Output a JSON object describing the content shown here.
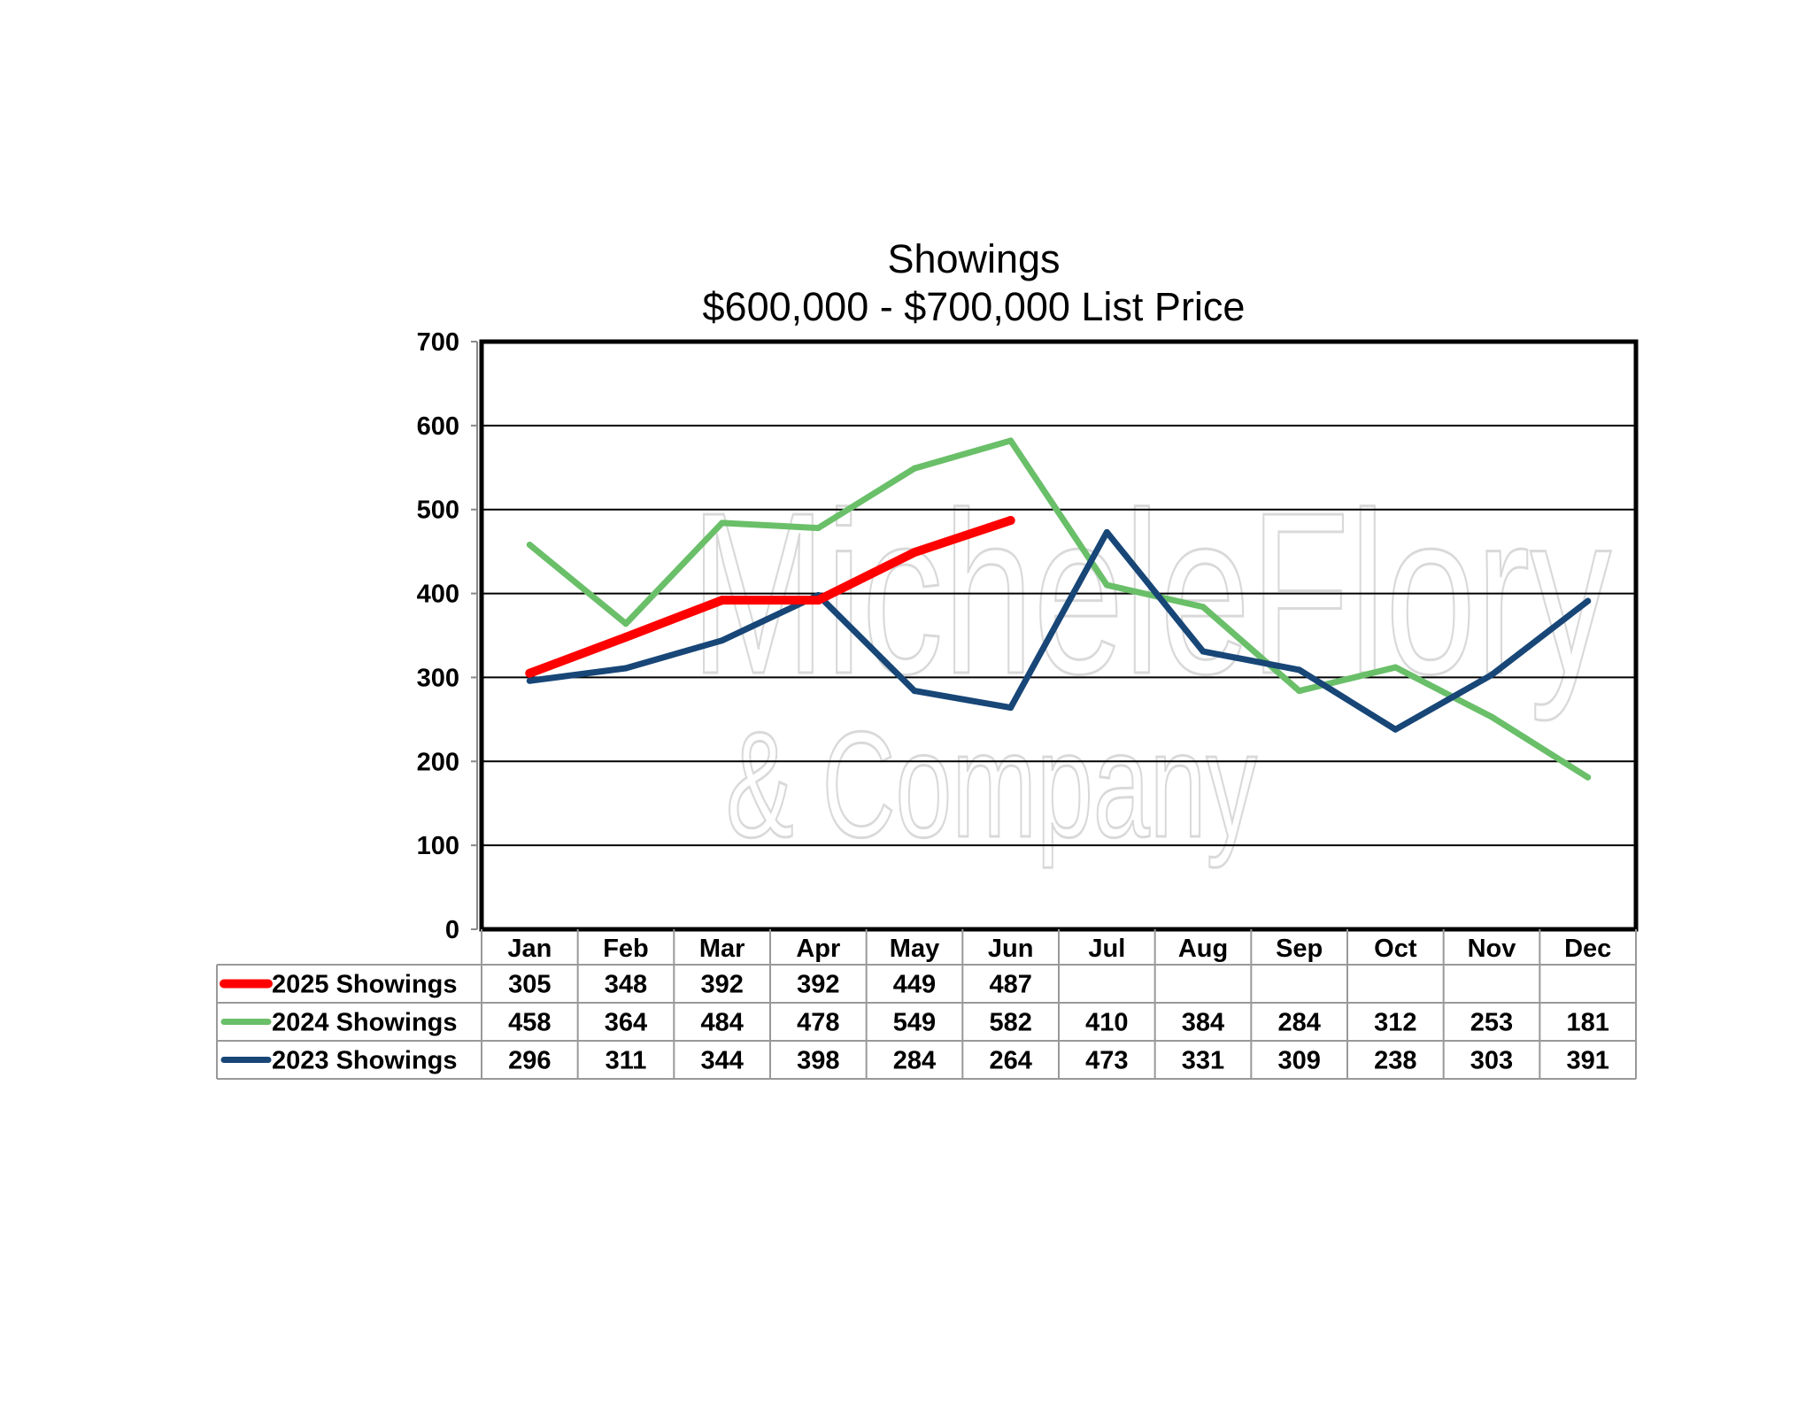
{
  "chart_data": {
    "type": "line",
    "title": "Showings",
    "subtitle": "$600,000 - $700,000 List Price",
    "categories": [
      "Jan",
      "Feb",
      "Mar",
      "Apr",
      "May",
      "Jun",
      "Jul",
      "Aug",
      "Sep",
      "Oct",
      "Nov",
      "Dec"
    ],
    "ylim": [
      0,
      700
    ],
    "yticks": [
      0,
      100,
      200,
      300,
      400,
      500,
      600,
      700
    ],
    "grid": true,
    "legend": "data-table",
    "series": [
      {
        "name": "2025 Showings",
        "color": "#ff0000",
        "values": [
          305,
          348,
          392,
          392,
          449,
          487,
          null,
          null,
          null,
          null,
          null,
          null
        ]
      },
      {
        "name": "2024 Showings",
        "color": "#6abf69",
        "values": [
          458,
          364,
          484,
          478,
          549,
          582,
          410,
          384,
          284,
          312,
          253,
          181
        ]
      },
      {
        "name": "2023 Showings",
        "color": "#174677",
        "values": [
          296,
          311,
          344,
          398,
          284,
          264,
          473,
          331,
          309,
          238,
          303,
          391
        ]
      }
    ]
  },
  "watermark": {
    "line1": "MicheleFlory",
    "line2": "& Company"
  }
}
